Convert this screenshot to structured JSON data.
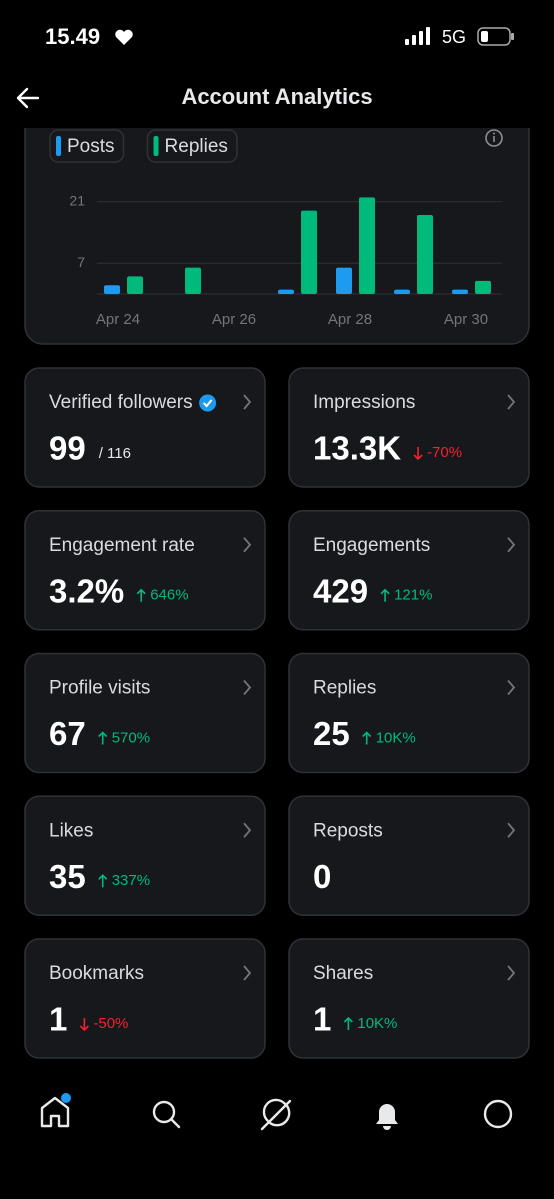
{
  "status_bar": {
    "time": "15.49",
    "network": "5G"
  },
  "header": {
    "title": "Account Analytics"
  },
  "chart_data": {
    "type": "bar",
    "categories": [
      "Apr 24",
      null,
      "Apr 26",
      null,
      "Apr 28",
      null,
      "Apr 30"
    ],
    "series": [
      {
        "name": "Posts",
        "color": "#1d9bf0",
        "values": [
          2,
          0,
          0,
          1,
          6,
          1,
          1
        ]
      },
      {
        "name": "Replies",
        "color": "#00ba7c",
        "values": [
          4,
          6,
          0,
          19,
          22,
          18,
          3
        ]
      }
    ],
    "ylim": [
      0,
      23
    ],
    "yticks": [
      7,
      21
    ],
    "grid": true
  },
  "cards": [
    {
      "label": "Verified followers",
      "verified": true,
      "value": "99",
      "total": "/ 116"
    },
    {
      "label": "Impressions",
      "value": "13.3K",
      "change": "-70%",
      "trend": "down"
    },
    {
      "label": "Engagement rate",
      "value": "3.2%",
      "change": "646%",
      "trend": "up"
    },
    {
      "label": "Engagements",
      "value": "429",
      "change": "121%",
      "trend": "up"
    },
    {
      "label": "Profile visits",
      "value": "67",
      "change": "570%",
      "trend": "up"
    },
    {
      "label": "Replies",
      "value": "25",
      "change": "10K%",
      "trend": "up"
    },
    {
      "label": "Likes",
      "value": "35",
      "change": "337%",
      "trend": "up"
    },
    {
      "label": "Reposts",
      "value": "0"
    },
    {
      "label": "Bookmarks",
      "value": "1",
      "change": "-50%",
      "trend": "down"
    },
    {
      "label": "Shares",
      "value": "1",
      "change": "10K%",
      "trend": "up"
    }
  ]
}
